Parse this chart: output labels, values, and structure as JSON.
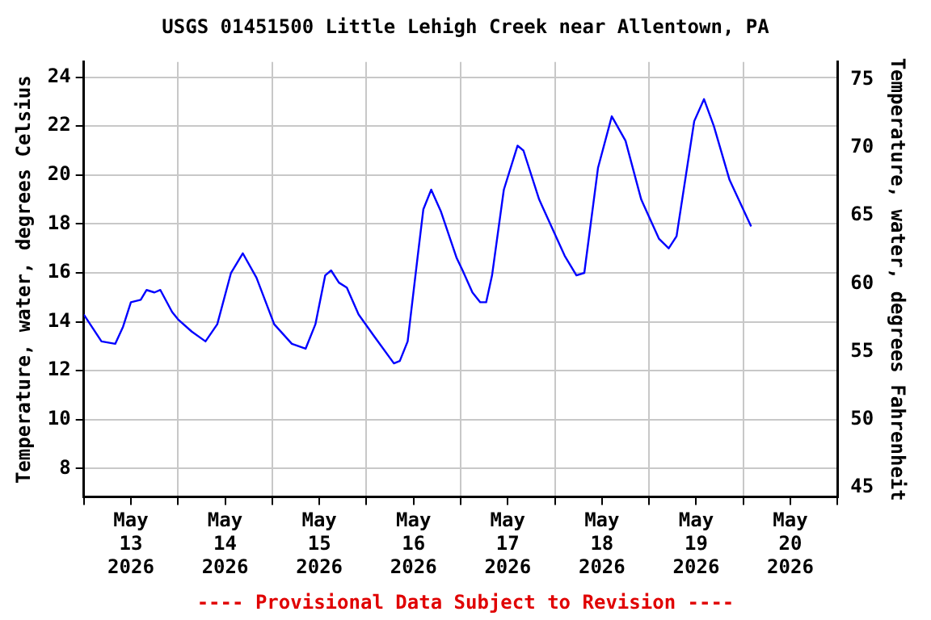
{
  "chart_data": {
    "type": "line",
    "title": "USGS 01451500 Little Lehigh Creek near Allentown, PA",
    "ylabel": "Temperature, water, degrees Celsius",
    "y2label": "Temperature, water, degrees Fahrenheit",
    "annotations": [
      "---- Provisional Data Subject to Revision ----"
    ],
    "x": [
      "2026-05-13T00:00",
      "2026-05-13T04:30",
      "2026-05-13T08:00",
      "2026-05-13T10:00",
      "2026-05-13T12:00",
      "2026-05-13T14:30",
      "2026-05-13T16:00",
      "2026-05-13T18:00",
      "2026-05-13T19:30",
      "2026-05-13T22:30",
      "2026-05-14T00:00",
      "2026-05-14T03:30",
      "2026-05-14T07:00",
      "2026-05-14T10:00",
      "2026-05-14T13:30",
      "2026-05-14T16:30",
      "2026-05-14T20:00",
      "2026-05-15T00:30",
      "2026-05-15T05:00",
      "2026-05-15T08:30",
      "2026-05-15T11:00",
      "2026-05-15T13:30",
      "2026-05-15T15:00",
      "2026-05-15T17:00",
      "2026-05-15T19:00",
      "2026-05-15T22:00",
      "2026-05-16T02:00",
      "2026-05-16T07:00",
      "2026-05-16T08:30",
      "2026-05-16T10:30",
      "2026-05-16T13:00",
      "2026-05-16T14:30",
      "2026-05-16T16:30",
      "2026-05-16T19:00",
      "2026-05-16T23:00",
      "2026-05-17T00:30",
      "2026-05-17T03:00",
      "2026-05-17T05:00",
      "2026-05-17T06:30",
      "2026-05-17T08:00",
      "2026-05-17T11:00",
      "2026-05-17T14:30",
      "2026-05-17T16:00",
      "2026-05-17T20:00",
      "2026-05-18T02:30",
      "2026-05-18T05:30",
      "2026-05-18T07:30",
      "2026-05-18T11:00",
      "2026-05-18T14:30",
      "2026-05-18T18:00",
      "2026-05-18T22:00",
      "2026-05-19T02:30",
      "2026-05-19T05:00",
      "2026-05-19T07:00",
      "2026-05-19T11:30",
      "2026-05-19T14:00",
      "2026-05-19T16:30",
      "2026-05-19T20:30",
      "2026-05-20T02:00"
    ],
    "series": [
      {
        "color": "#0000ff",
        "values": [
          14.3,
          13.2,
          13.1,
          13.8,
          14.8,
          14.9,
          15.3,
          15.2,
          15.3,
          14.4,
          14.1,
          13.6,
          13.2,
          13.9,
          16.0,
          16.8,
          15.8,
          13.9,
          13.1,
          12.9,
          13.9,
          15.9,
          16.1,
          15.6,
          15.4,
          14.3,
          13.4,
          12.3,
          12.4,
          13.2,
          16.6,
          18.6,
          19.4,
          18.5,
          16.6,
          16.1,
          15.2,
          14.8,
          14.8,
          15.9,
          19.4,
          21.2,
          21.0,
          19.0,
          16.7,
          15.9,
          16.0,
          20.3,
          22.4,
          21.4,
          19.0,
          17.4,
          17.0,
          17.5,
          22.2,
          23.1,
          22.0,
          19.8,
          17.9
        ]
      }
    ],
    "xlim": [
      "2026-05-13T00:00",
      "2026-05-21T00:00"
    ],
    "xticks": [
      {
        "value": "2026-05-13T00:00",
        "label": null
      },
      {
        "value": "2026-05-13T12:00",
        "label": "May 13 2026"
      },
      {
        "value": "2026-05-14T00:00",
        "label": null
      },
      {
        "value": "2026-05-14T12:00",
        "label": "May 14 2026"
      },
      {
        "value": "2026-05-15T00:00",
        "label": null
      },
      {
        "value": "2026-05-15T12:00",
        "label": "May 15 2026"
      },
      {
        "value": "2026-05-16T00:00",
        "label": null
      },
      {
        "value": "2026-05-16T12:00",
        "label": "May 16 2026"
      },
      {
        "value": "2026-05-17T00:00",
        "label": null
      },
      {
        "value": "2026-05-17T12:00",
        "label": "May 17 2026"
      },
      {
        "value": "2026-05-18T00:00",
        "label": null
      },
      {
        "value": "2026-05-18T12:00",
        "label": "May 18 2026"
      },
      {
        "value": "2026-05-19T00:00",
        "label": null
      },
      {
        "value": "2026-05-19T12:00",
        "label": "May 19 2026"
      },
      {
        "value": "2026-05-20T00:00",
        "label": null
      },
      {
        "value": "2026-05-20T12:00",
        "label": "May 20 2026"
      },
      {
        "value": "2026-05-21T00:00",
        "label": null
      }
    ],
    "ylim": [
      6.84,
      24.62
    ],
    "yticks": [
      8,
      10,
      12,
      14,
      16,
      18,
      20,
      22,
      24
    ],
    "y2lim": [
      44.3,
      76.3
    ],
    "y2ticks": [
      45,
      50,
      55,
      60,
      65,
      70,
      75
    ],
    "grid": true,
    "legend": false,
    "marker": "none",
    "line_style": "solid"
  }
}
